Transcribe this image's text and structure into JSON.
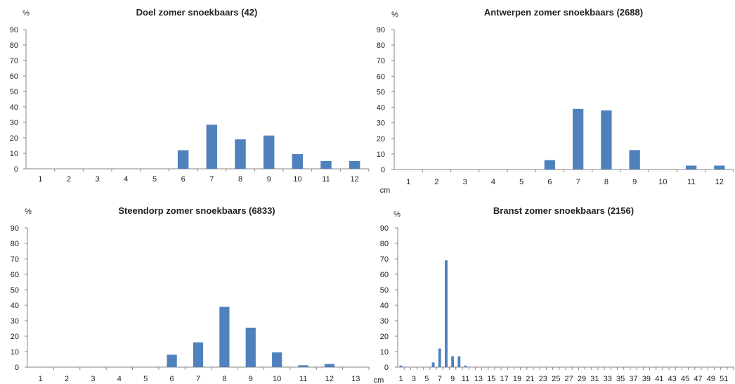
{
  "chart_data": [
    {
      "type": "bar",
      "title": "Doel zomer snoekbaars (42)",
      "ylabel": "%",
      "xlabel": "",
      "ylim": [
        0,
        90
      ],
      "yticks": [
        0,
        10,
        20,
        30,
        40,
        50,
        60,
        70,
        80,
        90
      ],
      "categories": [
        "1",
        "2",
        "3",
        "4",
        "5",
        "6",
        "7",
        "8",
        "9",
        "10",
        "11",
        "12"
      ],
      "values": [
        0,
        0,
        0,
        0,
        0,
        12,
        28.5,
        19,
        21.5,
        9.5,
        5,
        5
      ],
      "grid": false,
      "bar_color": "#4f81bd"
    },
    {
      "type": "bar",
      "title": "Antwerpen zomer snoekbaars (2688)",
      "ylabel": "%",
      "xlabel": "cm",
      "ylim": [
        0,
        90
      ],
      "yticks": [
        0,
        10,
        20,
        30,
        40,
        50,
        60,
        70,
        80,
        90
      ],
      "categories": [
        "1",
        "2",
        "3",
        "4",
        "5",
        "6",
        "7",
        "8",
        "9",
        "10",
        "11",
        "12"
      ],
      "values": [
        0,
        0,
        0,
        0,
        0,
        6,
        39,
        38,
        12.5,
        0,
        2.5,
        2.5
      ],
      "grid": false,
      "bar_color": "#4f81bd"
    },
    {
      "type": "bar",
      "title": "Steendorp  zomer snoekbaars (6833)",
      "ylabel": "%",
      "xlabel": "cm",
      "ylim": [
        0,
        90
      ],
      "yticks": [
        0,
        10,
        20,
        30,
        40,
        50,
        60,
        70,
        80,
        90
      ],
      "categories": [
        "1",
        "2",
        "3",
        "4",
        "5",
        "6",
        "7",
        "8",
        "9",
        "10",
        "11",
        "12",
        "13"
      ],
      "values": [
        0,
        0,
        0,
        0,
        0,
        8,
        16,
        39,
        25.5,
        9.5,
        1.2,
        2,
        0
      ],
      "grid": false,
      "bar_color": "#4f81bd"
    },
    {
      "type": "bar",
      "title": "Branst zomer snoekbaars (2156)",
      "ylabel": "%",
      "xlabel": "",
      "ylim": [
        0,
        90
      ],
      "yticks": [
        0,
        10,
        20,
        30,
        40,
        50,
        60,
        70,
        80,
        90
      ],
      "categories": [
        "1",
        "2",
        "3",
        "4",
        "5",
        "6",
        "7",
        "8",
        "9",
        "10",
        "11",
        "12",
        "13",
        "14",
        "15",
        "16",
        "17",
        "18",
        "19",
        "20",
        "21",
        "22",
        "23",
        "24",
        "25",
        "26",
        "27",
        "28",
        "29",
        "30",
        "31",
        "32",
        "33",
        "34",
        "35",
        "36",
        "37",
        "38",
        "39",
        "40",
        "41",
        "42",
        "43",
        "44",
        "45",
        "46",
        "47",
        "48",
        "49",
        "50",
        "51",
        "52"
      ],
      "tick_labels": [
        "1",
        "3",
        "5",
        "7",
        "9",
        "11",
        "13",
        "15",
        "17",
        "19",
        "21",
        "23",
        "25",
        "27",
        "29",
        "31",
        "33",
        "35",
        "37",
        "39",
        "41",
        "43",
        "45",
        "47",
        "49",
        "51"
      ],
      "values": [
        1,
        0,
        0,
        0,
        0,
        3,
        12,
        69,
        7,
        7,
        1,
        0,
        0,
        0,
        0,
        0,
        0,
        0,
        0,
        0,
        0,
        0,
        0,
        0,
        0,
        0,
        0,
        0,
        0,
        0,
        0,
        0,
        0,
        0,
        0,
        0,
        0,
        0,
        0,
        0,
        0,
        0,
        0,
        0,
        0,
        0,
        0,
        0,
        0,
        0,
        0,
        0
      ],
      "grid": false,
      "bar_color": "#4f81bd"
    }
  ]
}
